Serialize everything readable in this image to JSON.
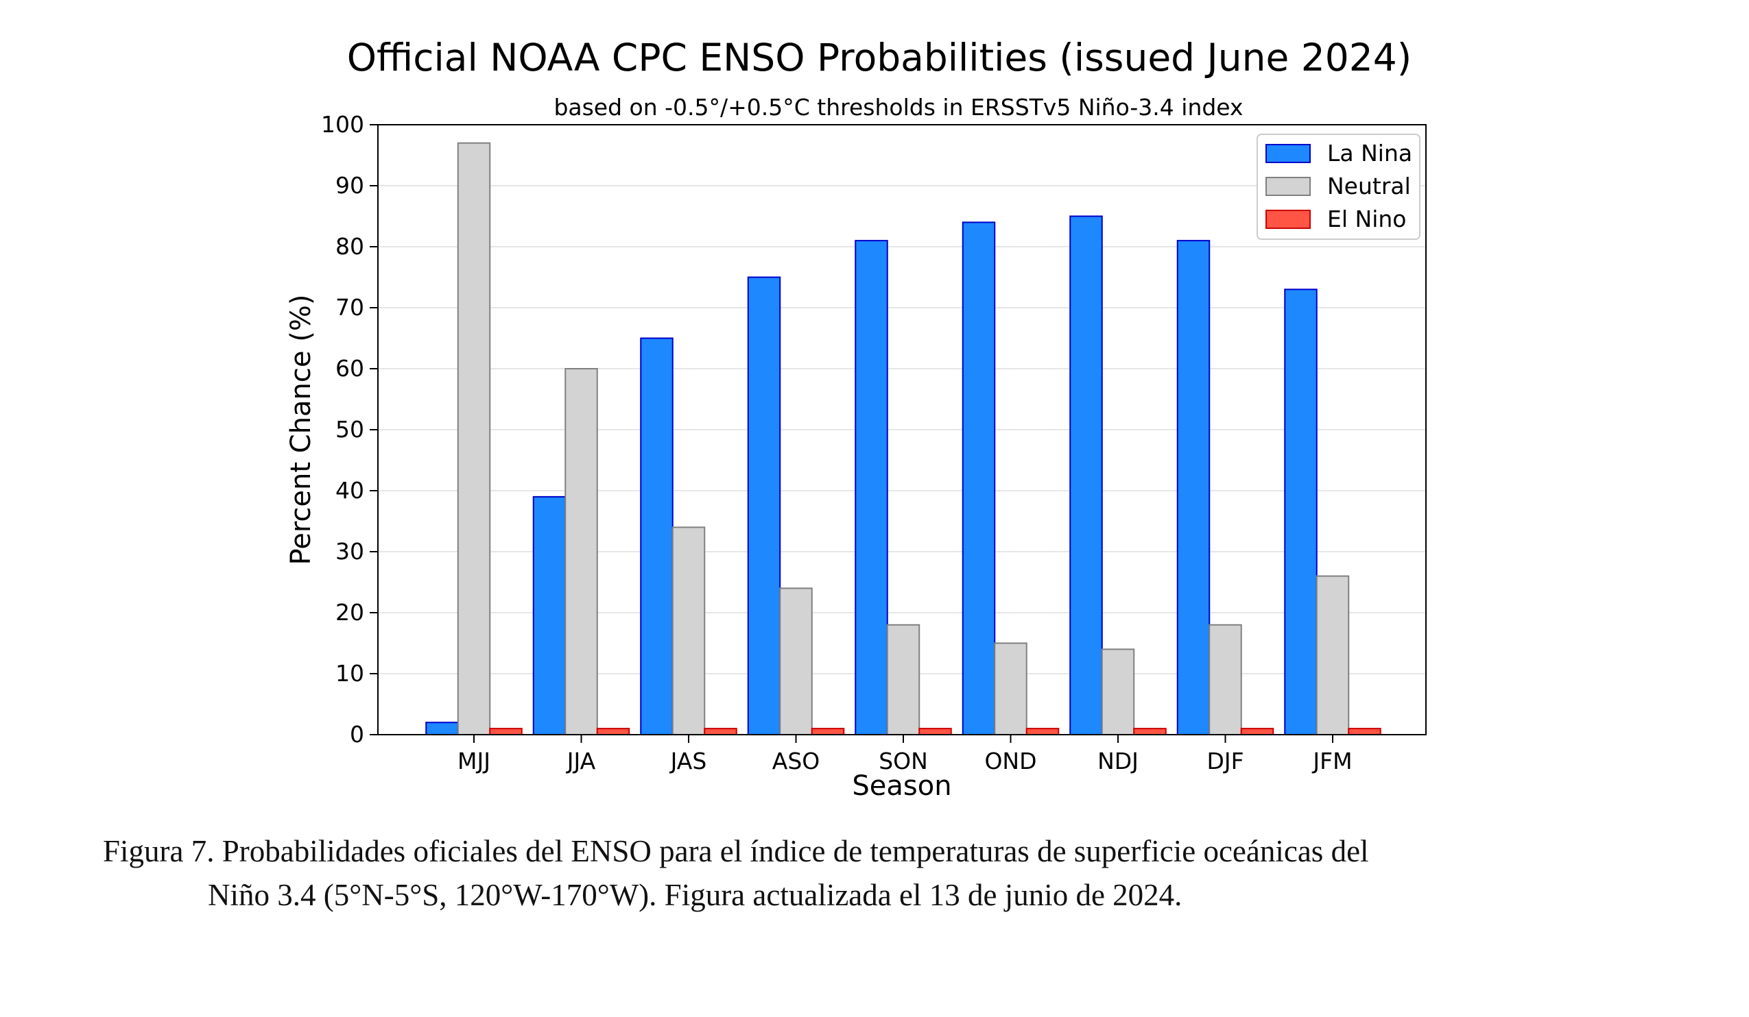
{
  "chart_data": {
    "type": "bar",
    "title": "Official NOAA CPC ENSO Probabilities (issued June 2024)",
    "subtitle": "based on -0.5°/+0.5°C thresholds in ERSSTv5 Niño-3.4 index",
    "xlabel": "Season",
    "ylabel": "Percent Chance (%)",
    "ylim": [
      0,
      100
    ],
    "yticks": [
      "0",
      "10",
      "20",
      "30",
      "40",
      "50",
      "60",
      "70",
      "80",
      "90",
      "100"
    ],
    "grid": true,
    "legend_position": "top-right",
    "categories": [
      "MJJ",
      "JJA",
      "JAS",
      "ASO",
      "SON",
      "OND",
      "NDJ",
      "DJF",
      "JFM"
    ],
    "series": [
      {
        "name": "La Nina",
        "color": "#1e88ff",
        "edge": "#0000cc",
        "values": [
          2,
          39,
          65,
          75,
          81,
          84,
          85,
          81,
          73
        ]
      },
      {
        "name": "Neutral",
        "color": "#d3d3d3",
        "edge": "#808080",
        "values": [
          97,
          60,
          34,
          24,
          18,
          15,
          14,
          18,
          26
        ]
      },
      {
        "name": "El Nino",
        "color": "#ff5544",
        "edge": "#cc0000",
        "values": [
          1,
          1,
          1,
          1,
          1,
          1,
          1,
          1,
          1
        ]
      }
    ]
  },
  "caption": {
    "line1": "Figura 7. Probabilidades oficiales del ENSO para el índice de temperaturas de superficie oceánicas del",
    "line2": "Niño 3.4 (5°N-5°S, 120°W-170°W). Figura actualizada el 13 de junio de 2024."
  }
}
